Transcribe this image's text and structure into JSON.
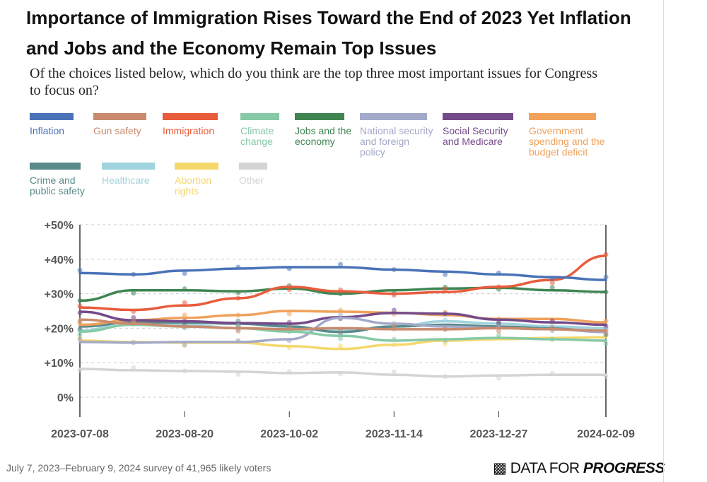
{
  "chart_data": {
    "type": "line",
    "title": "Importance of Immigration Rises Toward the End of 2023 Yet Inflation and Jobs and the Economy Remain Top Issues",
    "subtitle": "Of the choices listed below, which do you think are the top three most important issues for Congress to focus on?",
    "x": [
      "2023-07-08",
      "2023-07-30",
      "2023-08-20",
      "2023-09-11",
      "2023-10-02",
      "2023-10-23",
      "2023-11-14",
      "2023-12-05",
      "2023-12-27",
      "2024-01-18",
      "2024-02-09"
    ],
    "x_ticks": [
      "2023-07-08",
      "2023-08-20",
      "2023-10-02",
      "2023-11-14",
      "2023-12-27",
      "2024-02-09"
    ],
    "y_ticks": [
      "0%",
      "+10%",
      "+20%",
      "+30%",
      "+40%",
      "+50%"
    ],
    "ylim": [
      0,
      50
    ],
    "grid": true,
    "legend": "top",
    "series": [
      {
        "name": "Inflation",
        "color": "#4a72b8",
        "values": [
          36,
          35.6,
          36.7,
          37.3,
          37.7,
          37.7,
          37,
          36.4,
          35.6,
          34.8,
          34
        ]
      },
      {
        "name": "Gun safety",
        "color": "#c98a6e",
        "values": [
          22.5,
          21.3,
          20.5,
          20,
          19.7,
          20,
          19.7,
          19.7,
          20,
          19.7,
          19.3
        ]
      },
      {
        "name": "Immigration",
        "color": "#e85c3c",
        "values": [
          26,
          25.3,
          26.6,
          28.7,
          32,
          30.7,
          30,
          30.5,
          32,
          34,
          41
        ]
      },
      {
        "name": "Climate change",
        "color": "#86c9a6",
        "values": [
          19,
          21,
          20.5,
          20,
          19,
          17.8,
          16.4,
          16.8,
          17.2,
          16.8,
          16.4
        ]
      },
      {
        "name": "Jobs and the economy",
        "color": "#3f8552",
        "values": [
          28,
          31,
          31,
          30.7,
          31.5,
          30,
          31,
          31.5,
          31.7,
          31,
          30.5
        ]
      },
      {
        "name": "National security and foreign policy",
        "color": "#a3a9c8",
        "values": [
          16,
          15.8,
          16,
          16,
          16.8,
          23,
          21.3,
          20.5,
          20,
          19.7,
          18.9
        ]
      },
      {
        "name": "Social Security and Medicare",
        "color": "#744a8a",
        "values": [
          24.8,
          22.3,
          22,
          21.5,
          21.3,
          23.2,
          24.4,
          24.2,
          22.5,
          21.7,
          21
        ]
      },
      {
        "name": "Government spending and the budget deficit",
        "color": "#f0a15a",
        "values": [
          21,
          22.3,
          23,
          23.8,
          25,
          24.8,
          24.5,
          23.8,
          22.7,
          22.7,
          21.7
        ]
      },
      {
        "name": "Crime and public safety",
        "color": "#5b8a8c",
        "values": [
          20.5,
          21.7,
          21.7,
          21.3,
          20.5,
          18.9,
          20.5,
          21,
          20.5,
          19.9,
          18.9
        ]
      },
      {
        "name": "Healthcare",
        "color": "#a0d3dd",
        "values": [
          19.3,
          22,
          21,
          20,
          19.7,
          19.3,
          20.5,
          22,
          21.3,
          20.5,
          20
        ]
      },
      {
        "name": "Abortion rights",
        "color": "#f5d86c",
        "values": [
          16.4,
          16,
          15.8,
          15.8,
          14.8,
          14,
          15.2,
          16.4,
          16.8,
          17.2,
          17.4
        ]
      },
      {
        "name": "Other",
        "color": "#d4d4d4",
        "values": [
          8.2,
          7.8,
          7.6,
          7.4,
          7,
          7.2,
          6.5,
          6,
          6.3,
          6.5,
          6.5
        ]
      }
    ]
  },
  "footer": {
    "note": "July 7, 2023–February 9, 2024 survey of 41,965 likely voters",
    "brand_a": "DATA FOR ",
    "brand_b": "PROGRESS"
  }
}
